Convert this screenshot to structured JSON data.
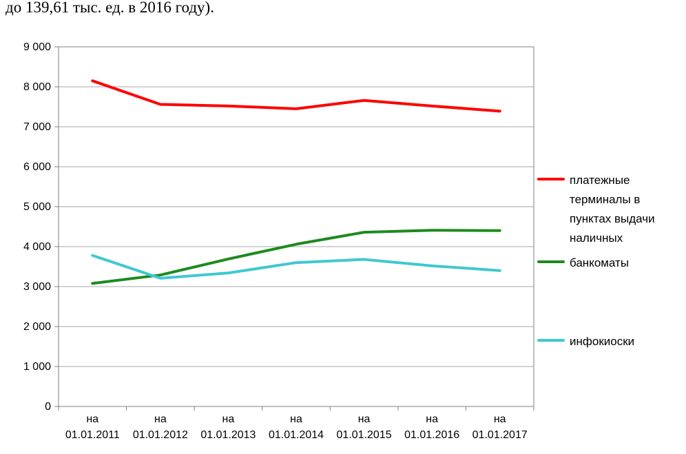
{
  "document": {
    "fragment": "до 139,61 тыс. ед. в 2016 году)."
  },
  "chart_data": {
    "type": "line",
    "categories": [
      "на 01.01.2011",
      "на 01.01.2012",
      "на 01.01.2013",
      "на 01.01.2014",
      "на 01.01.2015",
      "на 01.01.2016",
      "на 01.01.2017"
    ],
    "series": [
      {
        "name": "платежные терминалы в пунктах выдачи наличных",
        "color": "#fe0000",
        "values": [
          8150,
          7560,
          7520,
          7450,
          7660,
          7520,
          7390
        ]
      },
      {
        "name": "банкоматы",
        "color": "#1e8a1e",
        "values": [
          3080,
          3290,
          3690,
          4060,
          4360,
          4410,
          4400
        ]
      },
      {
        "name": "инфокиоски",
        "color": "#3fc8d0",
        "values": [
          3780,
          3210,
          3340,
          3600,
          3680,
          3520,
          3400
        ]
      }
    ],
    "ylim": [
      0,
      9000
    ],
    "y_tick_step": 1000,
    "y_tick_labels": [
      "0",
      "1 000",
      "2 000",
      "3 000",
      "4 000",
      "5 000",
      "6 000",
      "7 000",
      "8 000",
      "9 000"
    ],
    "grid": true,
    "legend_position": "right",
    "colors": {
      "gridline": "#a6a6a6",
      "axis": "#808080",
      "text": "#000000"
    }
  }
}
